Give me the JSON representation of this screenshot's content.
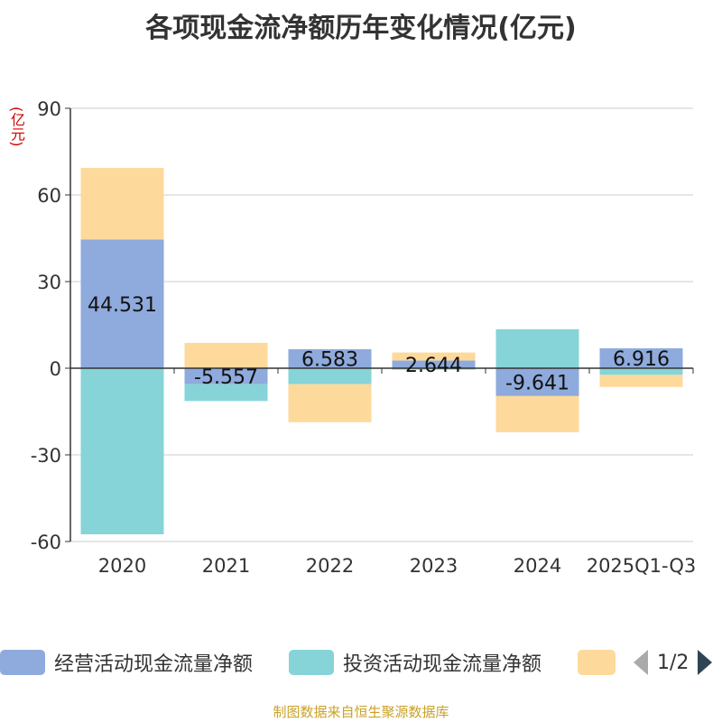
{
  "title": "各项现金流净额历年变化情况(亿元)",
  "unit_label": "(亿元)",
  "footer": "制图数据来自恒生聚源数据库",
  "legend": {
    "page": "1/2"
  },
  "chart_data": {
    "type": "bar",
    "stacked": true,
    "categories": [
      "2020",
      "2021",
      "2022",
      "2023",
      "2024",
      "2025Q1-Q3"
    ],
    "ylim": [
      -60,
      90
    ],
    "yticks": [
      -60,
      -30,
      0,
      30,
      60,
      90
    ],
    "grid": true,
    "legend_position": "bottom",
    "series": [
      {
        "name": "经营活动现金流量净额",
        "color": "#8faadc",
        "values": [
          44.531,
          -5.557,
          6.583,
          2.644,
          -9.641,
          6.916
        ],
        "labels": [
          "44.531",
          "-5.557",
          "6.583",
          "2.644",
          "-9.641",
          "6.916"
        ]
      },
      {
        "name": "投资活动现金流量净额",
        "color": "#86d4d8",
        "values": [
          -57.5,
          -5.8,
          -5.5,
          -0.5,
          13.5,
          -2.3
        ]
      },
      {
        "color": "#fdd99b",
        "values": [
          24.8,
          8.8,
          -13.2,
          2.8,
          -12.5,
          -4.2
        ]
      }
    ]
  }
}
